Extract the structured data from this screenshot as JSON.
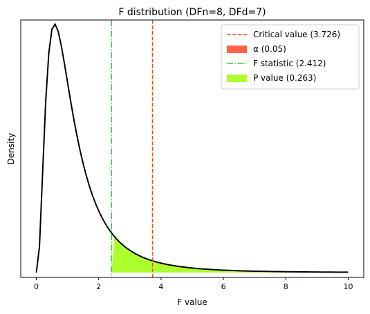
{
  "chart_data": {
    "type": "line",
    "title": "F distribution (DFn=8, DFd=7)",
    "xlabel": "F value",
    "ylabel": "Density",
    "dfn": 8,
    "dfd": 7,
    "xlim": [
      -0.5,
      10.5
    ],
    "x_domain": [
      0,
      10
    ],
    "xticks": [
      0,
      2,
      4,
      6,
      8,
      10
    ],
    "ylim": [
      -0.0135,
      0.7
    ],
    "y_ticks_shown": false,
    "grid": false,
    "legend_position": "top-right",
    "critical_value": 3.726,
    "f_statistic": 2.412,
    "alpha": 0.05,
    "p_value": 0.263,
    "legend": [
      {
        "label": "Critical value (3.726)",
        "style": "dashed-line",
        "color": "#ff4500"
      },
      {
        "label": "α (0.05)",
        "style": "patch",
        "color": "#ff6347"
      },
      {
        "label": "F statistic (2.412)",
        "style": "dashdot-line",
        "color": "#32cd32"
      },
      {
        "label": "P value (0.263)",
        "style": "patch",
        "color": "#adff2f"
      }
    ],
    "curve_color": "#000000"
  }
}
